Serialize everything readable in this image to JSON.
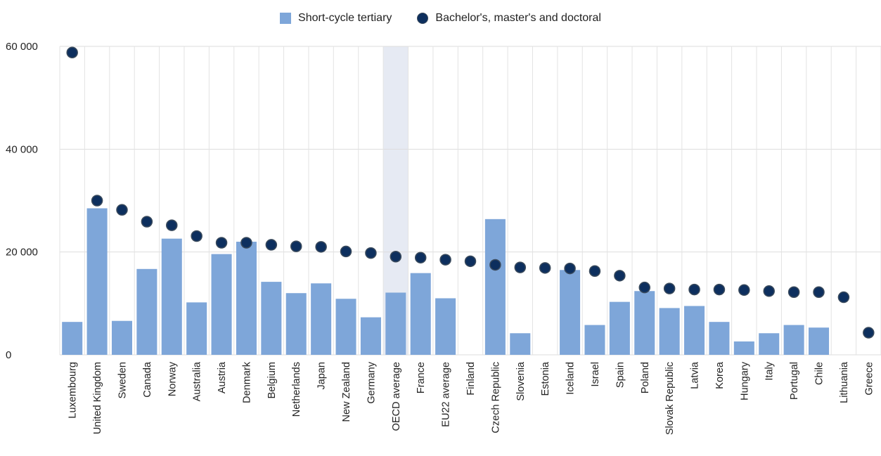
{
  "chart_data": {
    "type": "bar",
    "categories": [
      "Luxembourg",
      "United Kingdom",
      "Sweden",
      "Canada",
      "Norway",
      "Australia",
      "Austria",
      "Denmark",
      "Belgium",
      "Netherlands",
      "Japan",
      "New Zealand",
      "Germany",
      "OECD average",
      "France",
      "EU22 average",
      "Finland",
      "Czech Republic",
      "Slovenia",
      "Estonia",
      "Iceland",
      "Israel",
      "Spain",
      "Poland",
      "Slovak Republic",
      "Latvia",
      "Korea",
      "Hungary",
      "Italy",
      "Portugal",
      "Chile",
      "Lithuania",
      "Greece"
    ],
    "series": [
      {
        "name": "Short-cycle tertiary",
        "kind": "bar",
        "color": "#7ea6d9",
        "values": [
          6400,
          28500,
          6600,
          16700,
          22600,
          10200,
          19600,
          22000,
          14200,
          12000,
          13900,
          10900,
          7300,
          12100,
          15900,
          11000,
          null,
          26400,
          4200,
          null,
          16500,
          5800,
          10300,
          12400,
          9100,
          9500,
          6400,
          2600,
          4200,
          5800,
          5300,
          null,
          null
        ]
      },
      {
        "name": "Bachelor's, master's and doctoral",
        "kind": "dot",
        "color": "#0d2f5e",
        "values": [
          58800,
          30000,
          28200,
          25900,
          25200,
          23100,
          21800,
          21800,
          21400,
          21100,
          21000,
          20100,
          19800,
          19100,
          18900,
          18500,
          18200,
          17500,
          17000,
          16900,
          16800,
          16300,
          15400,
          13100,
          12900,
          12700,
          12700,
          12600,
          12400,
          12200,
          12200,
          11200,
          4300
        ]
      }
    ],
    "highlight_category": "OECD average",
    "highlight_color": "#e6eaf3",
    "y_ticks": [
      0,
      20000,
      40000,
      60000
    ],
    "y_tick_labels": [
      "0",
      "20 000",
      "40 000",
      "60 000"
    ],
    "ylim": [
      0,
      60000
    ],
    "grid": true,
    "legend_position": "top-center"
  }
}
